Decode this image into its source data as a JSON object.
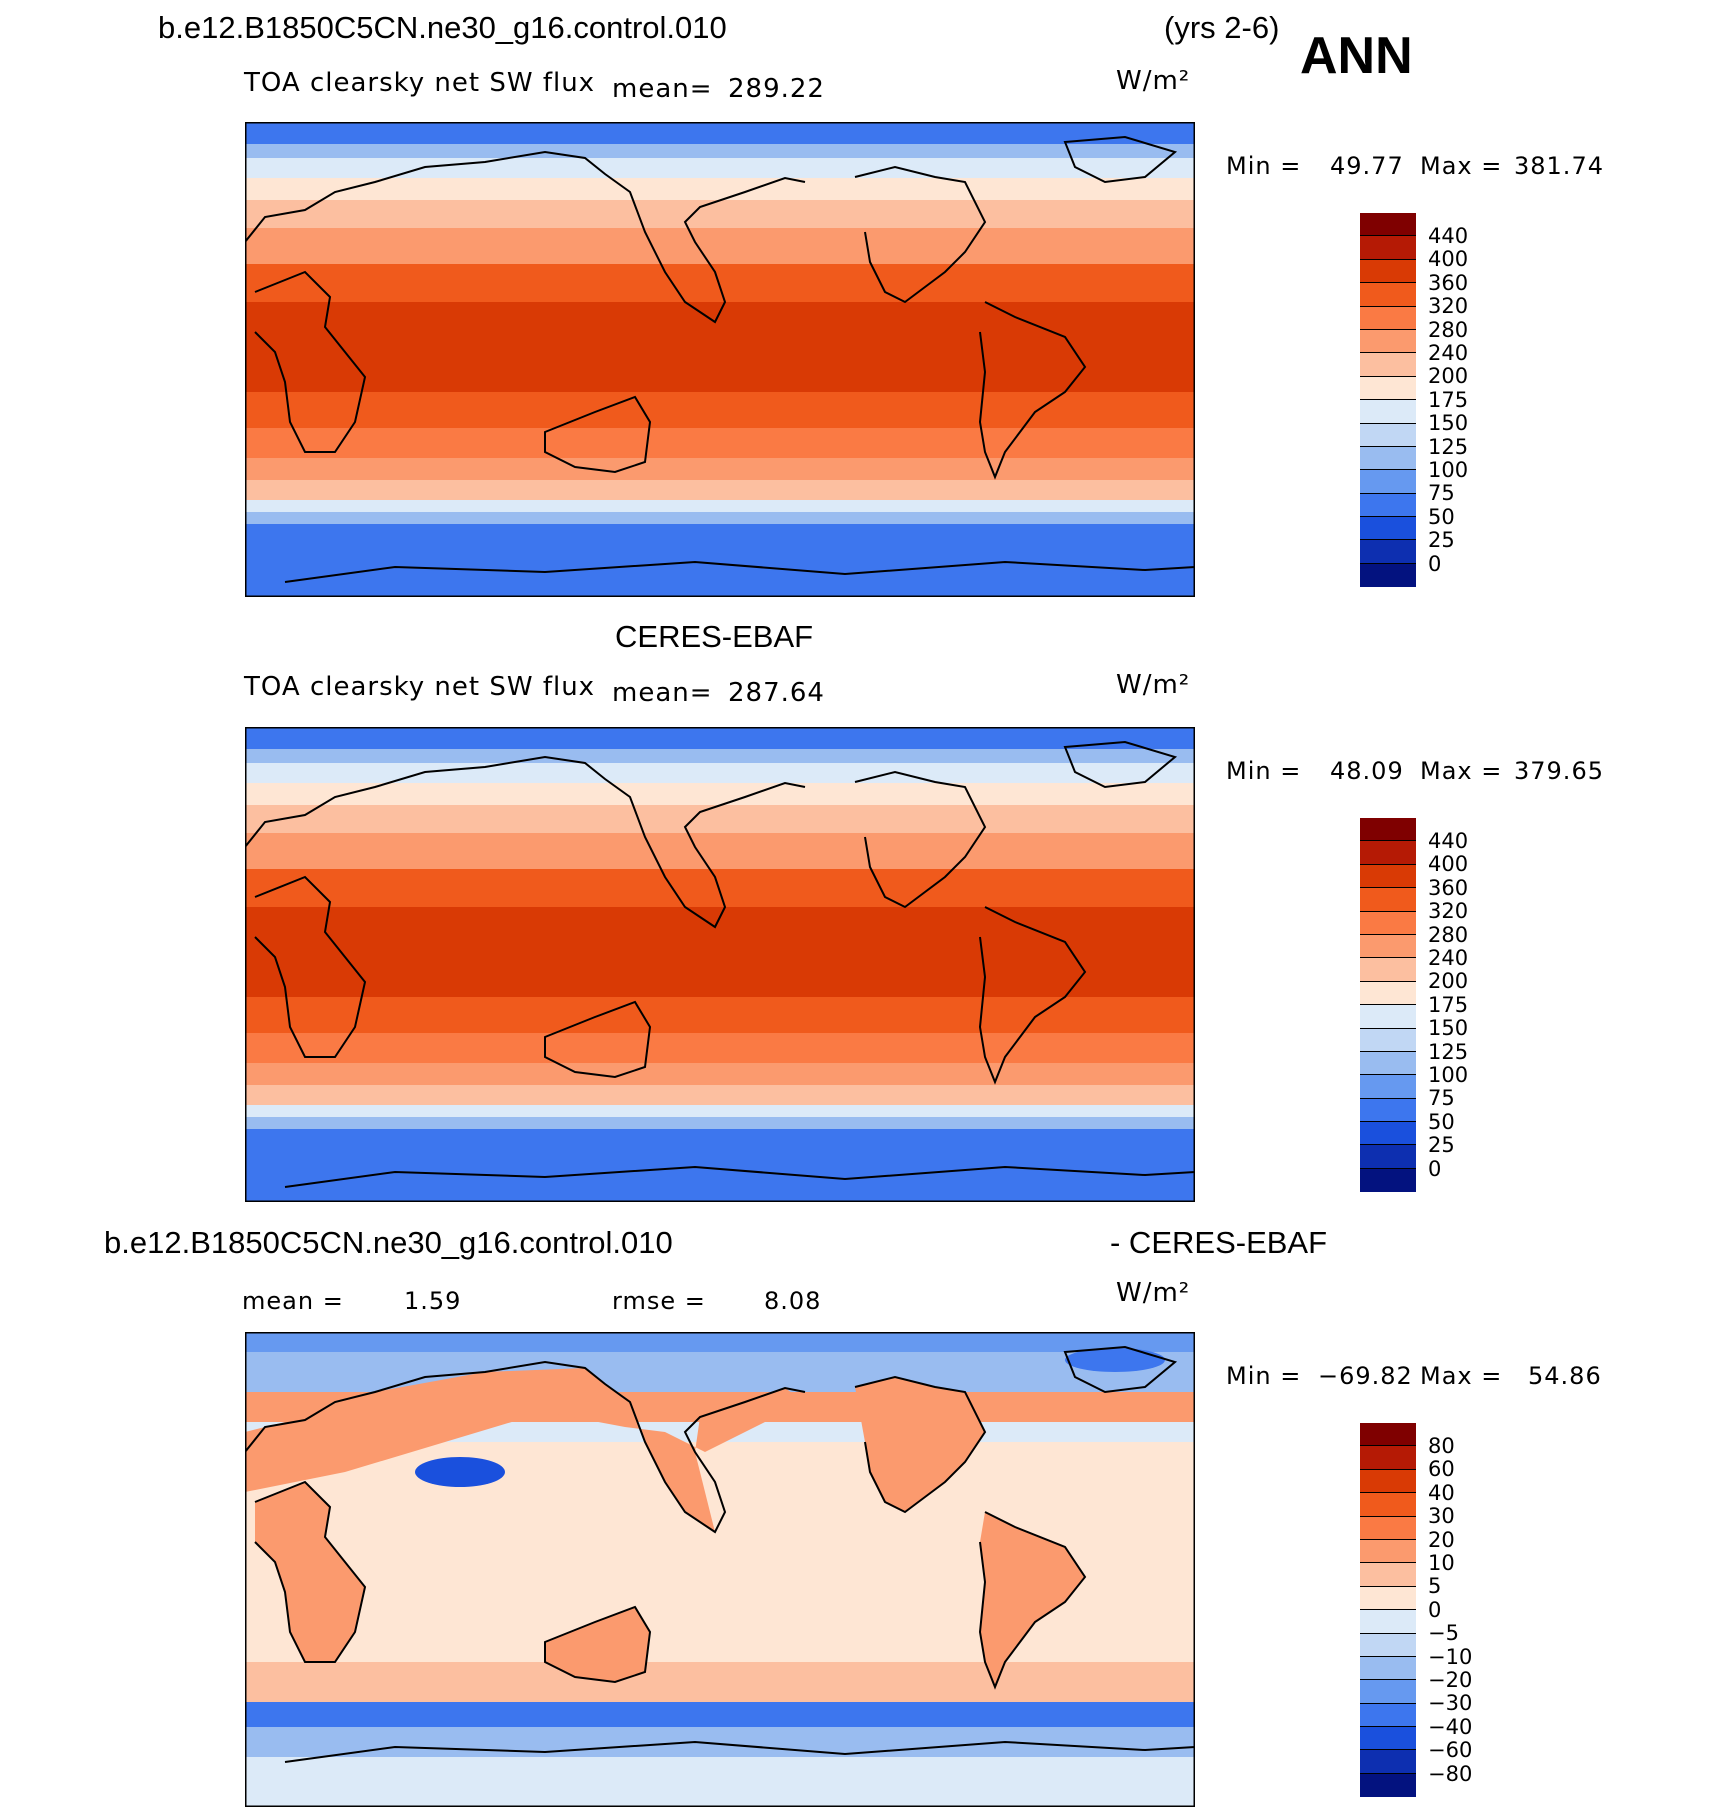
{
  "header": {
    "case_name": "b.e12.B1850C5CN.ne30_g16.control.010",
    "years": "(yrs 2-6)",
    "season": "ANN"
  },
  "panels": [
    {
      "id": "model",
      "variable": "TOA clearsky net SW flux",
      "mean_label": "mean=",
      "mean_value": "289.22",
      "units": "W/m²",
      "min_label": "Min =",
      "min_value": "49.77",
      "max_label": "Max =",
      "max_value": "381.74",
      "colorbar_levels": [
        "440",
        "400",
        "360",
        "320",
        "280",
        "240",
        "200",
        "175",
        "150",
        "125",
        "100",
        "75",
        "50",
        "25",
        "0"
      ]
    },
    {
      "id": "obs",
      "title": "CERES-EBAF",
      "variable": "TOA clearsky net SW flux",
      "mean_label": "mean=",
      "mean_value": "287.64",
      "units": "W/m²",
      "min_label": "Min =",
      "min_value": "48.09",
      "max_label": "Max =",
      "max_value": "379.65",
      "colorbar_levels": [
        "440",
        "400",
        "360",
        "320",
        "280",
        "240",
        "200",
        "175",
        "150",
        "125",
        "100",
        "75",
        "50",
        "25",
        "0"
      ]
    },
    {
      "id": "diff",
      "title_left": "b.e12.B1850C5CN.ne30_g16.control.010",
      "title_right": "- CERES-EBAF",
      "mean_label": "mean =",
      "mean_value": "1.59",
      "rmse_label": "rmse =",
      "rmse_value": "8.08",
      "units": "W/m²",
      "min_label": "Min =",
      "min_value": "−69.82",
      "max_label": "Max =",
      "max_value": "54.86",
      "colorbar_levels": [
        "80",
        "60",
        "40",
        "30",
        "20",
        "10",
        "5",
        "0",
        "−5",
        "−10",
        "−20",
        "−30",
        "−40",
        "−60",
        "−80"
      ]
    }
  ],
  "colors": {
    "scale": [
      "#7f0000",
      "#b51a05",
      "#d93a05",
      "#f05a1c",
      "#fa7a44",
      "#fb9a6e",
      "#fcbfa0",
      "#fee6d4",
      "#dceaf8",
      "#c1d7f4",
      "#99bcf0",
      "#6699f0",
      "#3d76ee",
      "#1a50dd",
      "#0d2fb0",
      "#03127f"
    ]
  }
}
